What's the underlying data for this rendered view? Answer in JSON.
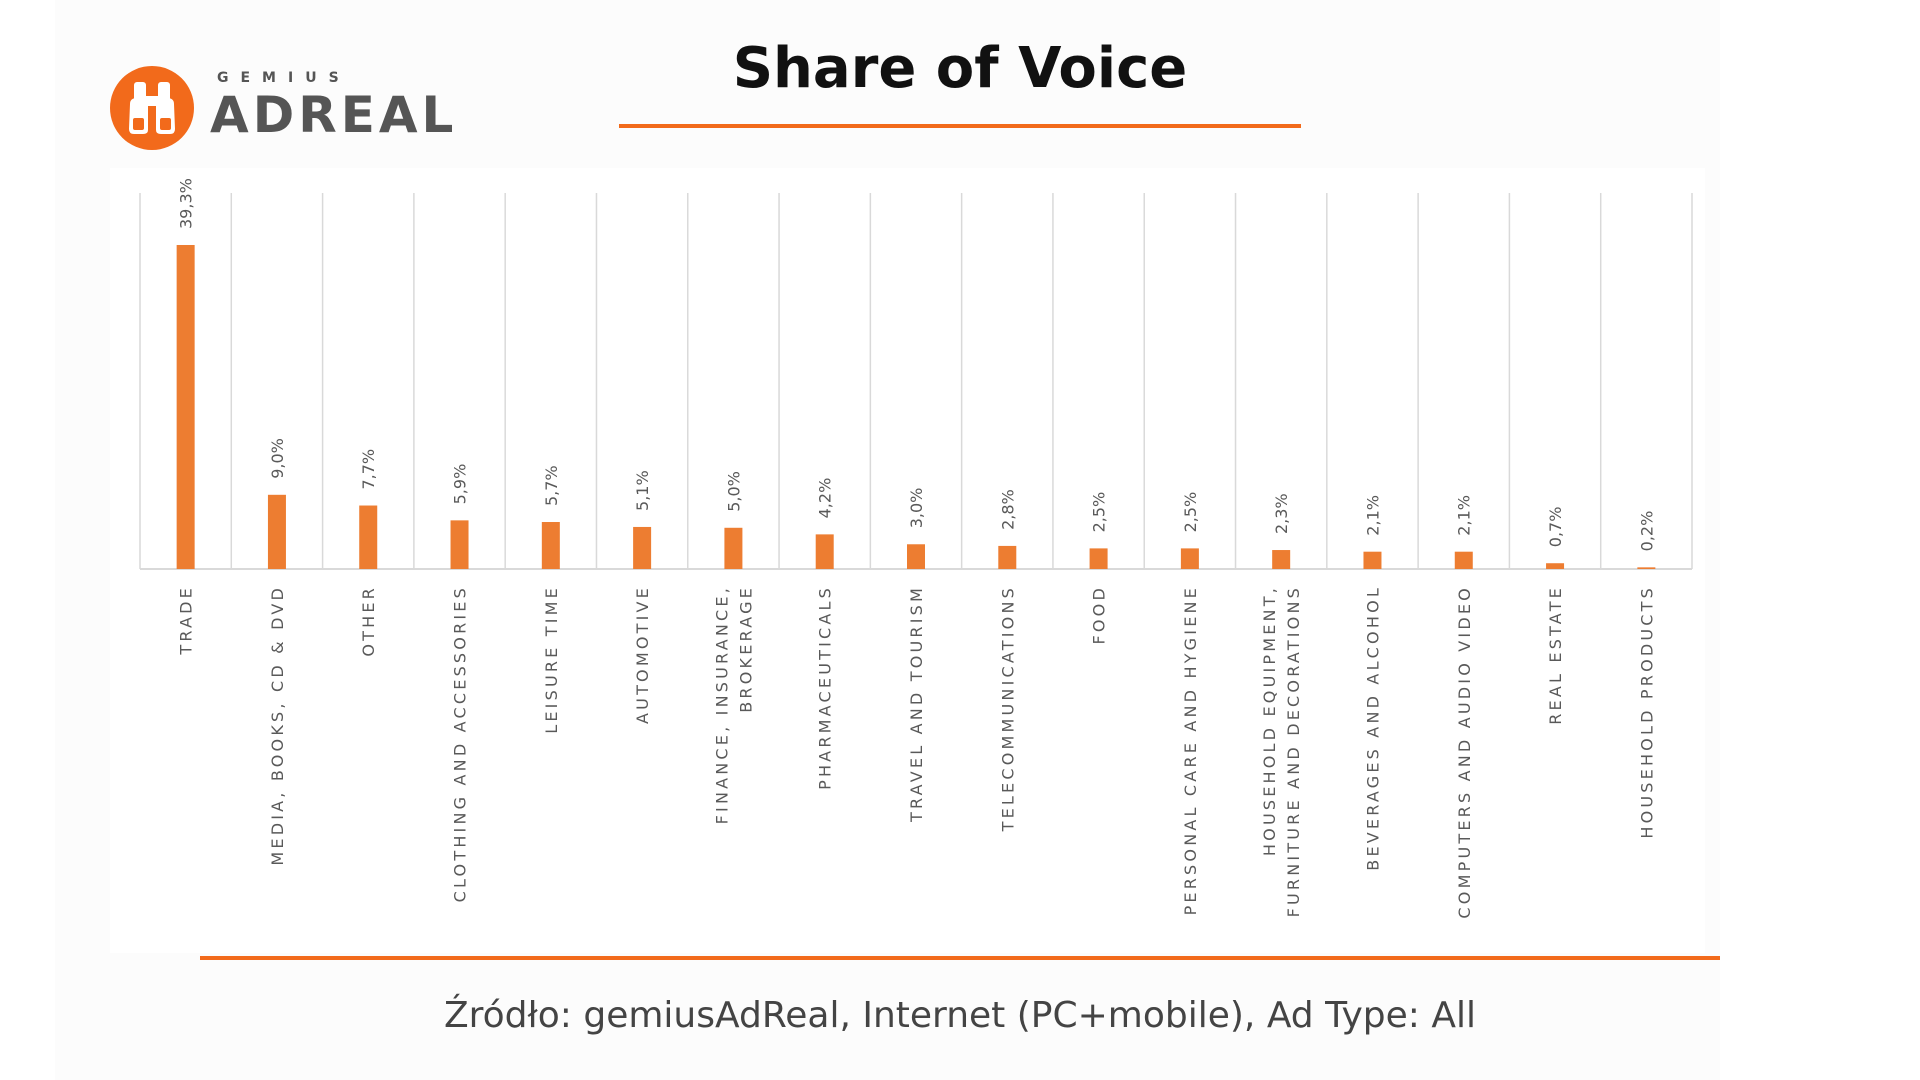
{
  "logo": {
    "small_text": "GEMIUS",
    "big_text": "ADREAL"
  },
  "title": "Share of Voice",
  "source_note": "Źródło: gemiusAdReal, Internet (PC+mobile), Ad Type: All",
  "colors": {
    "accent": "#f26a1b",
    "bar": "#ed7d31",
    "grid": "#d9d9d9",
    "axis_text": "#595959"
  },
  "chart_data": {
    "type": "bar",
    "title": "Share of Voice",
    "xlabel": "",
    "ylabel": "",
    "ylim": [
      0,
      45
    ],
    "grid": "vertical separators between categories",
    "categories": [
      [
        "TRADE"
      ],
      [
        "MEDIA, BOOKS, CD & DVD"
      ],
      [
        "OTHER"
      ],
      [
        "CLOTHING AND ACCESSORIES"
      ],
      [
        "LEISURE TIME"
      ],
      [
        "AUTOMOTIVE"
      ],
      [
        "FINANCE, INSURANCE,",
        "BROKERAGE"
      ],
      [
        "PHARMACEUTICALS"
      ],
      [
        "TRAVEL AND TOURISM"
      ],
      [
        "TELECOMMUNICATIONS"
      ],
      [
        "FOOD"
      ],
      [
        "PERSONAL CARE AND HYGIENE"
      ],
      [
        "HOUSEHOLD EQUIPMENT,",
        "FURNITURE AND DECORATIONS"
      ],
      [
        "BEVERAGES AND ALCOHOL"
      ],
      [
        "COMPUTERS AND AUDIO VIDEO"
      ],
      [
        "REAL ESTATE"
      ],
      [
        "HOUSEHOLD PRODUCTS"
      ]
    ],
    "values": [
      39.3,
      9.0,
      7.7,
      5.9,
      5.7,
      5.1,
      5.0,
      4.2,
      3.0,
      2.8,
      2.5,
      2.5,
      2.3,
      2.1,
      2.1,
      0.7,
      0.2
    ],
    "labels": [
      "39,3%",
      "9,0%",
      "7,7%",
      "5,9%",
      "5,7%",
      "5,1%",
      "5,0%",
      "4,2%",
      "3,0%",
      "2,8%",
      "2,5%",
      "2,5%",
      "2,3%",
      "2,1%",
      "2,1%",
      "0,7%",
      "0,2%"
    ]
  }
}
